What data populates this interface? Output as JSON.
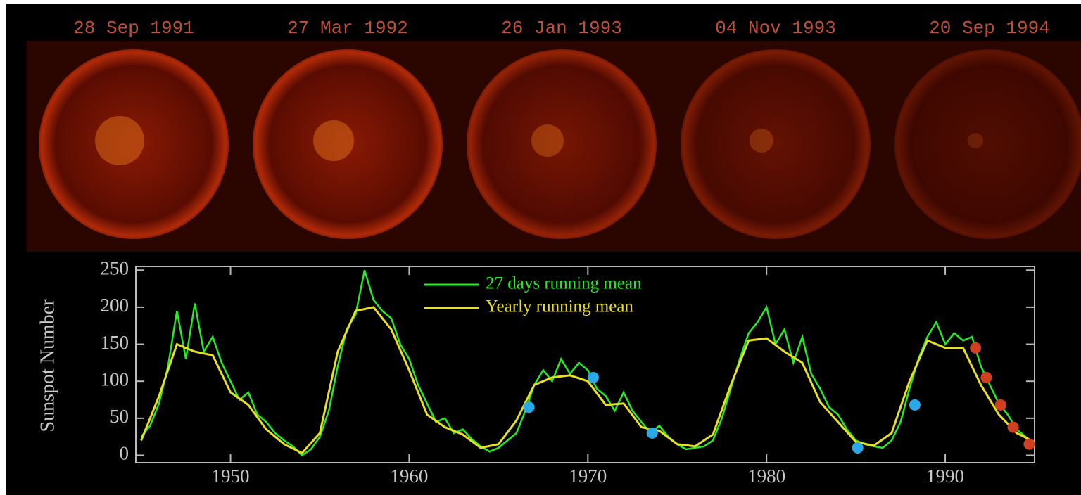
{
  "panels": [
    {
      "label": "28 Sep 1991"
    },
    {
      "label": "27 Mar 1992"
    },
    {
      "label": "26 Jan 1993"
    },
    {
      "label": "04 Nov 1993"
    },
    {
      "label": "20 Sep 1994"
    }
  ],
  "chart_data": {
    "type": "line",
    "ylabel": "Sunspot Number",
    "xlim": [
      1944.7,
      1995
    ],
    "xticks": [
      1950,
      1960,
      1970,
      1980,
      1990
    ],
    "ylim": [
      -10,
      255
    ],
    "yticks": [
      0,
      50,
      100,
      150,
      200,
      250
    ],
    "series": [
      {
        "name": "27 days running mean",
        "color": "#22ee22",
        "x": [
          1945,
          1945.5,
          1946,
          1946.5,
          1947,
          1947.5,
          1948,
          1948.5,
          1949,
          1949.5,
          1950,
          1950.5,
          1951,
          1951.5,
          1952,
          1952.5,
          1953,
          1953.5,
          1954,
          1954.5,
          1955,
          1955.5,
          1956,
          1956.5,
          1957,
          1957.5,
          1958,
          1958.5,
          1959,
          1959.5,
          1960,
          1960.5,
          1961,
          1961.5,
          1962,
          1962.5,
          1963,
          1963.5,
          1964,
          1964.5,
          1965,
          1965.5,
          1966,
          1966.5,
          1967,
          1967.5,
          1968,
          1968.5,
          1969,
          1969.5,
          1970,
          1970.5,
          1971,
          1971.5,
          1972,
          1972.5,
          1973,
          1973.5,
          1974,
          1974.5,
          1975,
          1975.5,
          1976,
          1976.5,
          1977,
          1977.5,
          1978,
          1978.5,
          1979,
          1979.5,
          1980,
          1980.5,
          1981,
          1981.5,
          1982,
          1982.5,
          1983,
          1983.5,
          1984,
          1984.5,
          1985,
          1985.5,
          1986,
          1986.5,
          1987,
          1987.5,
          1988,
          1988.5,
          1989,
          1989.5,
          1990,
          1990.5,
          1991,
          1991.5,
          1992,
          1992.5,
          1993,
          1993.5,
          1994,
          1994.5,
          1995
        ],
        "values": [
          25,
          40,
          70,
          120,
          195,
          130,
          205,
          140,
          160,
          125,
          100,
          75,
          85,
          55,
          45,
          30,
          20,
          12,
          0,
          8,
          25,
          60,
          120,
          170,
          190,
          250,
          210,
          195,
          185,
          150,
          130,
          95,
          70,
          45,
          50,
          30,
          35,
          22,
          12,
          5,
          10,
          20,
          30,
          60,
          95,
          115,
          100,
          130,
          110,
          125,
          115,
          90,
          80,
          60,
          85,
          60,
          45,
          30,
          40,
          25,
          15,
          8,
          10,
          12,
          20,
          50,
          90,
          130,
          165,
          180,
          200,
          150,
          170,
          125,
          160,
          110,
          90,
          65,
          55,
          35,
          20,
          15,
          12,
          10,
          20,
          45,
          90,
          130,
          160,
          180,
          150,
          165,
          155,
          160,
          120,
          95,
          70,
          55,
          35,
          25,
          15
        ]
      },
      {
        "name": "Yearly running mean",
        "color": "#e8e020",
        "x": [
          1945,
          1946,
          1947,
          1948,
          1949,
          1950,
          1951,
          1952,
          1953,
          1954,
          1955,
          1956,
          1957,
          1958,
          1959,
          1960,
          1961,
          1962,
          1963,
          1964,
          1965,
          1966,
          1967,
          1968,
          1969,
          1970,
          1971,
          1972,
          1973,
          1974,
          1975,
          1976,
          1977,
          1978,
          1979,
          1980,
          1981,
          1982,
          1983,
          1984,
          1985,
          1986,
          1987,
          1988,
          1989,
          1990,
          1991,
          1992,
          1993,
          1994,
          1995
        ],
        "values": [
          20,
          80,
          150,
          140,
          135,
          85,
          68,
          35,
          15,
          3,
          30,
          140,
          195,
          200,
          170,
          115,
          55,
          38,
          28,
          10,
          15,
          47,
          95,
          105,
          108,
          100,
          68,
          70,
          38,
          33,
          15,
          12,
          28,
          95,
          155,
          158,
          140,
          125,
          72,
          45,
          18,
          13,
          30,
          100,
          155,
          145,
          145,
          95,
          55,
          30,
          18
        ]
      }
    ],
    "markers": [
      {
        "color": "#2aa8e8",
        "x": [
          1966.7,
          1970.3,
          1973.6,
          1985.1,
          1988.3
        ],
        "values": [
          65,
          105,
          30,
          10,
          68
        ]
      },
      {
        "color": "#d04020",
        "x": [
          1991.7,
          1992.3,
          1993.1,
          1993.8,
          1994.7
        ],
        "values": [
          145,
          105,
          68,
          38,
          15
        ]
      }
    ]
  }
}
